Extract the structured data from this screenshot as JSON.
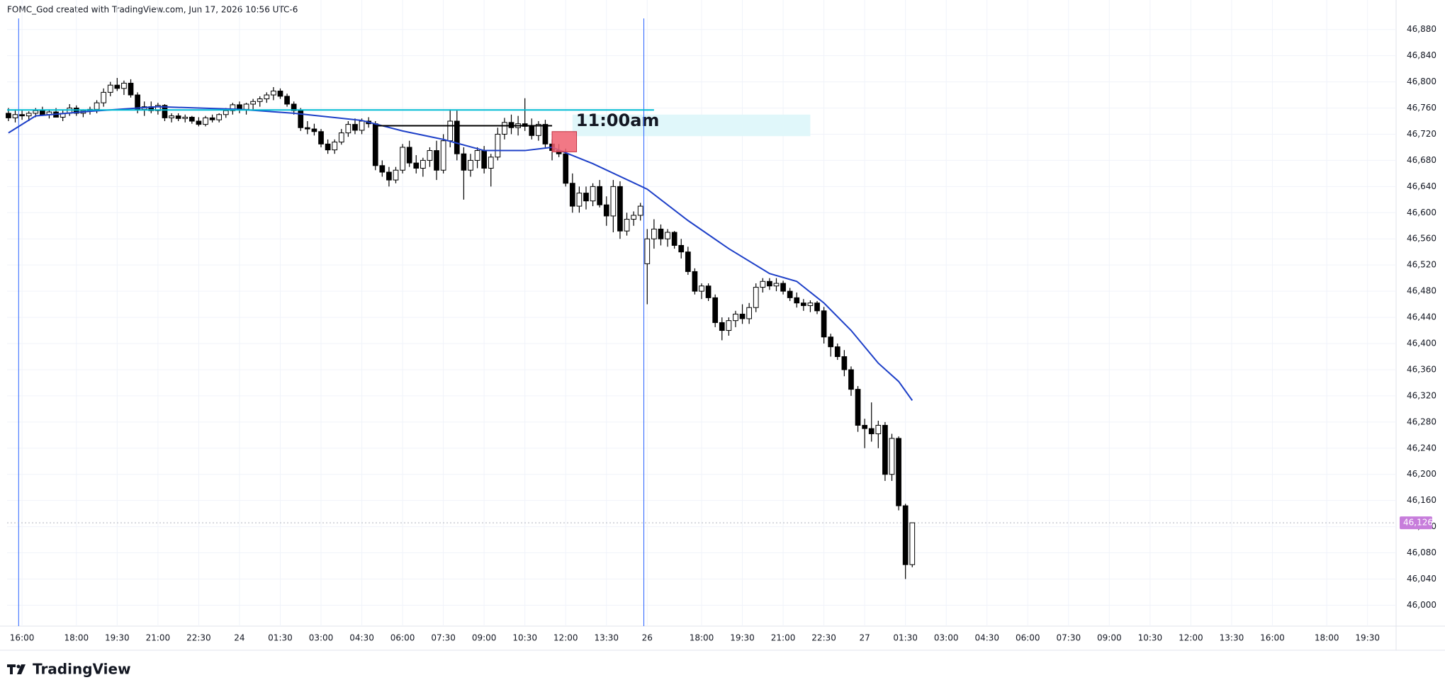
{
  "header": "FOMC_God created with TradingView.com, Jun 17, 2026 10:56 UTC-6",
  "logo": "TradingView",
  "chart_data": {
    "type": "candlestick",
    "up_color": "#ffffff",
    "down_color": "#000000",
    "outline_color": "#000000",
    "xlim": [
      -2.2,
      202.2
    ],
    "ylim": [
      45968,
      46897
    ],
    "grid": true,
    "yticks": [
      {
        "value": 46000,
        "label": "46,000"
      },
      {
        "value": 46040,
        "label": "46,040"
      },
      {
        "value": 46080,
        "label": "46,080"
      },
      {
        "value": 46120,
        "label": "46,120"
      },
      {
        "value": 46160,
        "label": "46,160"
      },
      {
        "value": 46200,
        "label": "46,200"
      },
      {
        "value": 46240,
        "label": "46,240"
      },
      {
        "value": 46280,
        "label": "46,280"
      },
      {
        "value": 46320,
        "label": "46,320"
      },
      {
        "value": 46360,
        "label": "46,360"
      },
      {
        "value": 46400,
        "label": "46,400"
      },
      {
        "value": 46440,
        "label": "46,440"
      },
      {
        "value": 46480,
        "label": "46,480"
      },
      {
        "value": 46520,
        "label": "46,520"
      },
      {
        "value": 46560,
        "label": "46,560"
      },
      {
        "value": 46600,
        "label": "46,600"
      },
      {
        "value": 46640,
        "label": "46,640"
      },
      {
        "value": 46680,
        "label": "46,680"
      },
      {
        "value": 46720,
        "label": "46,720"
      },
      {
        "value": 46760,
        "label": "46,760"
      },
      {
        "value": 46800,
        "label": "46,800"
      },
      {
        "value": 46840,
        "label": "46,840"
      },
      {
        "value": 46880,
        "label": "46,880"
      }
    ],
    "xticks": [
      {
        "value": 0,
        "label": "16:00"
      },
      {
        "value": 8,
        "label": "18:00"
      },
      {
        "value": 14,
        "label": "19:30"
      },
      {
        "value": 20,
        "label": "21:00"
      },
      {
        "value": 26,
        "label": "22:30"
      },
      {
        "value": 32,
        "label": "24"
      },
      {
        "value": 38,
        "label": "01:30"
      },
      {
        "value": 44,
        "label": "03:00"
      },
      {
        "value": 50,
        "label": "04:30"
      },
      {
        "value": 56,
        "label": "06:00"
      },
      {
        "value": 62,
        "label": "07:30"
      },
      {
        "value": 68,
        "label": "09:00"
      },
      {
        "value": 74,
        "label": "10:30"
      },
      {
        "value": 80,
        "label": "12:00"
      },
      {
        "value": 86,
        "label": "13:30"
      },
      {
        "value": 92,
        "label": "26"
      },
      {
        "value": 100,
        "label": "18:00"
      },
      {
        "value": 106,
        "label": "19:30"
      },
      {
        "value": 112,
        "label": "21:00"
      },
      {
        "value": 118,
        "label": "22:30"
      },
      {
        "value": 124,
        "label": "27"
      },
      {
        "value": 130,
        "label": "01:30"
      },
      {
        "value": 136,
        "label": "03:00"
      },
      {
        "value": 142,
        "label": "04:30"
      },
      {
        "value": 148,
        "label": "06:00"
      },
      {
        "value": 154,
        "label": "07:30"
      },
      {
        "value": 160,
        "label": "09:00"
      },
      {
        "value": 166,
        "label": "10:30"
      },
      {
        "value": 172,
        "label": "12:00"
      },
      {
        "value": 178,
        "label": "13:30"
      },
      {
        "value": 184,
        "label": "16:00"
      },
      {
        "value": 192,
        "label": "18:00"
      },
      {
        "value": 198,
        "label": "19:30"
      }
    ],
    "candles": [
      [
        -2,
        46752,
        46760,
        46740,
        46745
      ],
      [
        -1,
        46745,
        46758,
        46738,
        46750
      ],
      [
        0,
        46750,
        46756,
        46742,
        46748
      ],
      [
        1,
        46748,
        46755,
        46740,
        46752
      ],
      [
        2,
        46752,
        46760,
        46746,
        46756
      ],
      [
        3,
        46756,
        46762,
        46748,
        46750
      ],
      [
        4,
        46750,
        46758,
        46744,
        46754
      ],
      [
        5,
        46754,
        46760,
        46748,
        46746
      ],
      [
        6,
        46746,
        46756,
        46740,
        46752
      ],
      [
        7,
        46752,
        46766,
        46748,
        46760
      ],
      [
        8,
        46760,
        46764,
        46748,
        46752
      ],
      [
        9,
        46752,
        46758,
        46746,
        46756
      ],
      [
        10,
        46756,
        46762,
        46750,
        46758
      ],
      [
        11,
        46758,
        46772,
        46752,
        46768
      ],
      [
        12,
        46768,
        46790,
        46762,
        46784
      ],
      [
        13,
        46784,
        46800,
        46778,
        46795
      ],
      [
        14,
        46795,
        46806,
        46786,
        46790
      ],
      [
        15,
        46790,
        46802,
        46780,
        46798
      ],
      [
        16,
        46798,
        46804,
        46776,
        46780
      ],
      [
        17,
        46780,
        46784,
        46752,
        46758
      ],
      [
        18,
        46758,
        46770,
        46748,
        46762
      ],
      [
        19,
        46762,
        46770,
        46752,
        46756
      ],
      [
        20,
        46756,
        46768,
        46750,
        46764
      ],
      [
        21,
        46764,
        46766,
        46740,
        46745
      ],
      [
        22,
        46745,
        46752,
        46738,
        46748
      ],
      [
        23,
        46748,
        46752,
        46740,
        46744
      ],
      [
        24,
        46744,
        46750,
        46738,
        46746
      ],
      [
        25,
        46746,
        46748,
        46736,
        46740
      ],
      [
        26,
        46740,
        46746,
        46732,
        46735
      ],
      [
        27,
        46735,
        46748,
        46732,
        46745
      ],
      [
        28,
        46745,
        46750,
        46738,
        46742
      ],
      [
        29,
        46742,
        46752,
        46738,
        46750
      ],
      [
        30,
        46750,
        46760,
        46745,
        46756
      ],
      [
        31,
        46756,
        46768,
        46750,
        46765
      ],
      [
        32,
        46765,
        46770,
        46752,
        46758
      ],
      [
        33,
        46758,
        46768,
        46750,
        46766
      ],
      [
        34,
        46766,
        46774,
        46758,
        46770
      ],
      [
        35,
        46770,
        46778,
        46762,
        46774
      ],
      [
        36,
        46774,
        46784,
        46768,
        46780
      ],
      [
        37,
        46780,
        46792,
        46772,
        46786
      ],
      [
        38,
        46786,
        46790,
        46774,
        46778
      ],
      [
        39,
        46778,
        46782,
        46762,
        46766
      ],
      [
        40,
        46766,
        46770,
        46750,
        46756
      ],
      [
        41,
        46756,
        46760,
        46725,
        46730
      ],
      [
        42,
        46730,
        46740,
        46720,
        46728
      ],
      [
        43,
        46728,
        46736,
        46718,
        46724
      ],
      [
        44,
        46724,
        46728,
        46700,
        46705
      ],
      [
        45,
        46705,
        46712,
        46690,
        46696
      ],
      [
        46,
        46696,
        46712,
        46690,
        46708
      ],
      [
        47,
        46708,
        46728,
        46704,
        46722
      ],
      [
        48,
        46722,
        46740,
        46716,
        46735
      ],
      [
        49,
        46735,
        46744,
        46720,
        46726
      ],
      [
        50,
        46726,
        46744,
        46720,
        46740
      ],
      [
        51,
        46740,
        46746,
        46730,
        46736
      ],
      [
        52,
        46736,
        46740,
        46665,
        46672
      ],
      [
        53,
        46672,
        46680,
        46655,
        46662
      ],
      [
        54,
        46662,
        46670,
        46640,
        46650
      ],
      [
        55,
        46650,
        46670,
        46645,
        46665
      ],
      [
        56,
        46665,
        46705,
        46660,
        46700
      ],
      [
        57,
        46700,
        46710,
        46670,
        46676
      ],
      [
        58,
        46676,
        46688,
        46660,
        46668
      ],
      [
        59,
        46668,
        46684,
        46655,
        46680
      ],
      [
        60,
        46680,
        46700,
        46670,
        46695
      ],
      [
        61,
        46695,
        46710,
        46650,
        46665
      ],
      [
        62,
        46665,
        46720,
        46660,
        46710
      ],
      [
        63,
        46710,
        46758,
        46700,
        46740
      ],
      [
        64,
        46740,
        46756,
        46680,
        46690
      ],
      [
        65,
        46690,
        46700,
        46620,
        46665
      ],
      [
        66,
        46665,
        46690,
        46655,
        46680
      ],
      [
        67,
        46680,
        46700,
        46668,
        46695
      ],
      [
        68,
        46695,
        46702,
        46660,
        46668
      ],
      [
        69,
        46668,
        46690,
        46640,
        46685
      ],
      [
        70,
        46685,
        46730,
        46680,
        46720
      ],
      [
        71,
        46720,
        46745,
        46712,
        46738
      ],
      [
        72,
        46738,
        46750,
        46720,
        46730
      ],
      [
        73,
        46730,
        46748,
        46718,
        46736
      ],
      [
        74,
        46736,
        46775,
        46725,
        46732
      ],
      [
        75,
        46732,
        46744,
        46712,
        46718
      ],
      [
        76,
        46718,
        46740,
        46710,
        46735
      ],
      [
        77,
        46735,
        46742,
        46700,
        46705
      ],
      [
        78,
        46705,
        46712,
        46680,
        46695
      ],
      [
        79,
        46695,
        46705,
        46685,
        46690
      ],
      [
        80,
        46690,
        46698,
        46640,
        46645
      ],
      [
        81,
        46645,
        46660,
        46600,
        46610
      ],
      [
        82,
        46610,
        46640,
        46600,
        46630
      ],
      [
        83,
        46630,
        46640,
        46605,
        46618
      ],
      [
        84,
        46618,
        46645,
        46610,
        46640
      ],
      [
        85,
        46640,
        46650,
        46608,
        46612
      ],
      [
        86,
        46612,
        46625,
        46580,
        46595
      ],
      [
        87,
        46595,
        46650,
        46570,
        46640
      ],
      [
        88,
        46640,
        46648,
        46560,
        46572
      ],
      [
        89,
        46572,
        46600,
        46565,
        46590
      ],
      [
        90,
        46590,
        46602,
        46580,
        46596
      ],
      [
        91,
        46596,
        46615,
        46588,
        46610
      ],
      [
        92,
        46522,
        46575,
        46460,
        46560
      ],
      [
        93,
        46560,
        46590,
        46545,
        46575
      ],
      [
        94,
        46575,
        46582,
        46550,
        46560
      ],
      [
        95,
        46560,
        46575,
        46548,
        46570
      ],
      [
        96,
        46570,
        46572,
        46545,
        46550
      ],
      [
        97,
        46550,
        46560,
        46530,
        46540
      ],
      [
        98,
        46540,
        46548,
        46505,
        46510
      ],
      [
        99,
        46510,
        46515,
        46475,
        46480
      ],
      [
        100,
        46480,
        46492,
        46468,
        46488
      ],
      [
        101,
        46488,
        46492,
        46465,
        46470
      ],
      [
        102,
        46470,
        46475,
        46425,
        46432
      ],
      [
        103,
        46432,
        46440,
        46405,
        46420
      ],
      [
        104,
        46420,
        46440,
        46412,
        46435
      ],
      [
        105,
        46435,
        46450,
        46425,
        46445
      ],
      [
        106,
        46445,
        46460,
        46430,
        46438
      ],
      [
        107,
        46438,
        46462,
        46430,
        46455
      ],
      [
        108,
        46455,
        46492,
        46448,
        46486
      ],
      [
        109,
        46486,
        46500,
        46478,
        46495
      ],
      [
        110,
        46495,
        46500,
        46482,
        46488
      ],
      [
        111,
        46488,
        46500,
        46480,
        46492
      ],
      [
        112,
        46492,
        46496,
        46475,
        46480
      ],
      [
        113,
        46480,
        46485,
        46465,
        46470
      ],
      [
        114,
        46470,
        46478,
        46455,
        46462
      ],
      [
        115,
        46462,
        46468,
        46450,
        46458
      ],
      [
        116,
        46458,
        46466,
        46448,
        46462
      ],
      [
        117,
        46462,
        46465,
        46445,
        46450
      ],
      [
        118,
        46450,
        46456,
        46400,
        46410
      ],
      [
        119,
        46410,
        46415,
        46380,
        46395
      ],
      [
        120,
        46395,
        46400,
        46375,
        46380
      ],
      [
        121,
        46380,
        46390,
        46350,
        46360
      ],
      [
        122,
        46360,
        46365,
        46320,
        46330
      ],
      [
        123,
        46330,
        46335,
        46265,
        46275
      ],
      [
        124,
        46275,
        46285,
        46240,
        46270
      ],
      [
        125,
        46270,
        46310,
        46250,
        46262
      ],
      [
        126,
        46262,
        46282,
        46240,
        46275
      ],
      [
        127,
        46275,
        46280,
        46190,
        46200
      ],
      [
        128,
        46200,
        46262,
        46190,
        46255
      ],
      [
        129,
        46255,
        46258,
        46145,
        46152
      ],
      [
        130,
        46152,
        46155,
        46040,
        46062
      ],
      [
        131,
        46062,
        46126,
        46058,
        46126
      ]
    ],
    "ma": {
      "color": "#1e40c8",
      "x": [
        -2,
        2,
        10,
        20,
        32,
        40,
        50,
        56,
        62,
        68,
        74,
        78,
        84,
        92,
        98,
        104,
        110,
        114,
        118,
        122,
        126,
        129,
        131
      ],
      "values": [
        46722,
        46748,
        46755,
        46762,
        46758,
        46752,
        46741,
        46725,
        46712,
        46695,
        46695,
        46700,
        46675,
        46636,
        46588,
        46545,
        46507,
        46495,
        46462,
        46420,
        46370,
        46342,
        46313
      ]
    },
    "vertical_lines": {
      "color": "#2962ff",
      "x": [
        -0.5,
        91.5
      ]
    },
    "level_line": {
      "color": "#00bcd4",
      "value": 46757,
      "x": [
        -2.2,
        93
      ]
    },
    "range_line": {
      "color": "#000000",
      "value": 46733,
      "x": [
        52,
        78
      ]
    },
    "red_box": {
      "color": "#f06070",
      "x": [
        78,
        81.6
      ],
      "y": [
        46693,
        46724
      ]
    },
    "zone_box": {
      "color": "#e0f7fa",
      "x": [
        81,
        116
      ],
      "y": [
        46717,
        46750
      ],
      "label": "11:00am"
    },
    "last_price": {
      "value": 46126,
      "label": "46,126",
      "color": "#c77ddb"
    }
  }
}
